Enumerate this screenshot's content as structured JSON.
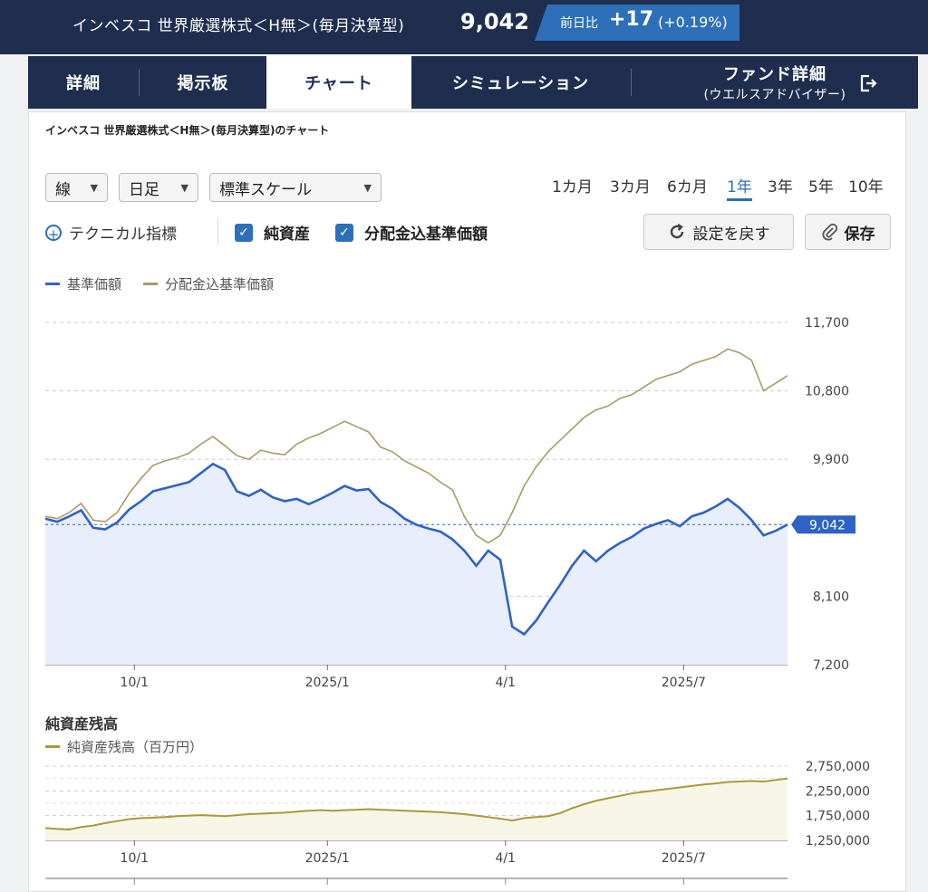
{
  "header": {
    "fund_name": "インベスコ 世界厳選株式＜H無＞(毎月決算型)",
    "price": "9,042",
    "change_label": "前日比",
    "change_value": "+17",
    "change_pct": "(+0.19%)"
  },
  "tabs": [
    {
      "label": "詳細"
    },
    {
      "label": "掲示板"
    },
    {
      "label": "チャート"
    },
    {
      "label": "シミュレーション"
    },
    {
      "label": "ファンド詳細",
      "sub": "(ウエルスアドバイザー)"
    }
  ],
  "chart_title": "インベスコ 世界厳選株式＜H無＞(毎月決算型)のチャート",
  "controls": {
    "type_select": "線",
    "interval_select": "日足",
    "scale_select": "標準スケール",
    "periods": [
      "1カ月",
      "3カ月",
      "6カ月",
      "1年",
      "3年",
      "5年",
      "10年"
    ],
    "active_period": "1年",
    "technical": "テクニカル指標",
    "check_net_assets": "純資産",
    "check_dividend": "分配金込基準価額",
    "reset_button": "設定を戻す",
    "save_button": "保存"
  },
  "colors": {
    "nav": "#2f62c6",
    "dividend": "#a89a6a",
    "assets": "#a89a3a",
    "header_bg": "#1f2e4f",
    "accent": "#2d6fb8"
  },
  "chart_data": [
    {
      "type": "line",
      "legend": [
        "基準価額",
        "分配金込基準価額"
      ],
      "x_ticks": [
        "10/1",
        "2025/1",
        "4/1",
        "2025/7"
      ],
      "y_ticks": [
        "11,700",
        "10,800",
        "9,900",
        "8,100",
        "7,200"
      ],
      "ylim": [
        7200,
        11700
      ],
      "current_label": "9,042",
      "current_value": 9042,
      "series": [
        {
          "name": "基準価額",
          "values": [
            9120,
            9080,
            9150,
            9230,
            9000,
            8980,
            9070,
            9240,
            9350,
            9480,
            9520,
            9560,
            9600,
            9720,
            9840,
            9760,
            9480,
            9420,
            9500,
            9400,
            9350,
            9380,
            9310,
            9380,
            9460,
            9550,
            9490,
            9510,
            9340,
            9250,
            9120,
            9040,
            8990,
            8950,
            8850,
            8700,
            8500,
            8700,
            8580,
            7700,
            7600,
            7780,
            8020,
            8250,
            8500,
            8700,
            8560,
            8700,
            8800,
            8880,
            8990,
            9050,
            9100,
            9020,
            9150,
            9200,
            9280,
            9380,
            9260,
            9100,
            8900,
            8960,
            9042
          ]
        },
        {
          "name": "分配金込基準価額",
          "values": [
            9150,
            9120,
            9200,
            9320,
            9100,
            9080,
            9200,
            9450,
            9650,
            9820,
            9880,
            9920,
            9980,
            10100,
            10200,
            10080,
            9950,
            9900,
            10020,
            9980,
            9960,
            10100,
            10180,
            10240,
            10320,
            10400,
            10330,
            10260,
            10060,
            10000,
            9880,
            9800,
            9720,
            9600,
            9500,
            9150,
            8900,
            8800,
            8900,
            9200,
            9550,
            9800,
            10000,
            10150,
            10300,
            10450,
            10550,
            10600,
            10700,
            10750,
            10850,
            10950,
            11000,
            11050,
            11150,
            11200,
            11250,
            11350,
            11300,
            11200,
            10800,
            10900,
            11000
          ]
        }
      ]
    },
    {
      "type": "area",
      "title": "純資産残高",
      "legend": [
        "純資産残高（百万円）"
      ],
      "x_ticks": [
        "10/1",
        "2025/1",
        "4/1",
        "2025/7"
      ],
      "y_ticks": [
        "2,750,000",
        "2,250,000",
        "1,750,000",
        "1,250,000"
      ],
      "ylim": [
        1250000,
        2750000
      ],
      "series": [
        {
          "name": "純資産残高（百万円）",
          "values": [
            1500000,
            1480000,
            1470000,
            1520000,
            1550000,
            1600000,
            1640000,
            1680000,
            1700000,
            1710000,
            1720000,
            1740000,
            1750000,
            1760000,
            1750000,
            1740000,
            1760000,
            1780000,
            1790000,
            1800000,
            1810000,
            1830000,
            1850000,
            1860000,
            1850000,
            1860000,
            1870000,
            1880000,
            1870000,
            1860000,
            1850000,
            1840000,
            1830000,
            1820000,
            1800000,
            1780000,
            1750000,
            1720000,
            1690000,
            1650000,
            1700000,
            1720000,
            1740000,
            1800000,
            1900000,
            1980000,
            2050000,
            2100000,
            2150000,
            2200000,
            2230000,
            2260000,
            2290000,
            2320000,
            2350000,
            2380000,
            2400000,
            2430000,
            2440000,
            2450000,
            2440000,
            2470000,
            2500000
          ]
        }
      ]
    }
  ]
}
